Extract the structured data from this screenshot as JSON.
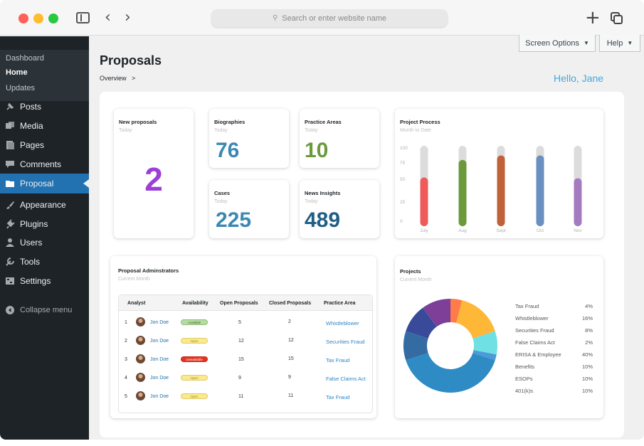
{
  "browser": {
    "url_placeholder": "Search or enter website name"
  },
  "sidebar": {
    "sub_items": [
      "Dashboard",
      "Home",
      "Updates"
    ],
    "items": [
      {
        "label": "Posts",
        "icon": "pin-icon"
      },
      {
        "label": "Media",
        "icon": "media-icon"
      },
      {
        "label": "Pages",
        "icon": "pages-icon"
      },
      {
        "label": "Comments",
        "icon": "comments-icon"
      },
      {
        "label": "Proposal",
        "icon": "folder-icon"
      },
      {
        "label": "Appearance",
        "icon": "brush-icon"
      },
      {
        "label": "Plugins",
        "icon": "plug-icon"
      },
      {
        "label": "Users",
        "icon": "user-icon"
      },
      {
        "label": "Tools",
        "icon": "wrench-icon"
      },
      {
        "label": "Settings",
        "icon": "settings-icon"
      }
    ],
    "collapse_label": "Collapse menu",
    "active_color": "#2271b1"
  },
  "header": {
    "screen_options": "Screen Options",
    "help": "Help",
    "title": "Proposals",
    "breadcrumb": "Overview",
    "breadcrumb_sep": ">",
    "greeting": "Hello, Jane"
  },
  "stats": {
    "new_proposals": {
      "title": "New proposals",
      "sub": "Today",
      "value": "2",
      "color": "#9b3fd6"
    },
    "biographies": {
      "title": "Biographies",
      "sub": "Today",
      "value": "76",
      "color": "#3d88b3"
    },
    "practice_areas": {
      "title": "Practice Areas",
      "sub": "Today",
      "value": "10",
      "color": "#6a9a3a"
    },
    "cases": {
      "title": "Cases",
      "sub": "Today",
      "value": "225",
      "color": "#3d88b3"
    },
    "news_insights": {
      "title": "News Insights",
      "sub": "Today",
      "value": "489",
      "color": "#1f5f86"
    }
  },
  "project_process": {
    "title": "Project Process",
    "sub": "Month to Date"
  },
  "admins": {
    "title": "Proposal Adminstrators",
    "sub": "Current Month",
    "columns": [
      "Analyst",
      "Availability",
      "Open Proposals",
      "Closed Proposals",
      "Practice Area"
    ],
    "rows": [
      {
        "num": "1",
        "name": "Jon Doe",
        "status": "Available",
        "status_class": "available",
        "open": "5",
        "closed": "2",
        "area": "Whistleblower"
      },
      {
        "num": "2",
        "name": "Jon Doe",
        "status": "Open",
        "status_class": "open",
        "open": "12",
        "closed": "12",
        "area": "Securities Fraud"
      },
      {
        "num": "3",
        "name": "Jon Doe",
        "status": "Unavailable",
        "status_class": "unavailable",
        "open": "15",
        "closed": "15",
        "area": "Tax Fraud"
      },
      {
        "num": "4",
        "name": "Jon Doe",
        "status": "Open",
        "status_class": "open",
        "open": "9",
        "closed": "9",
        "area": "False Claims Act"
      },
      {
        "num": "5",
        "name": "Jon Doe",
        "status": "Open",
        "status_class": "open",
        "open": "11",
        "closed": "11",
        "area": "Tax Fraud"
      }
    ]
  },
  "projects": {
    "title": "Projects",
    "sub": "Current Month"
  },
  "chart_data": [
    {
      "type": "bar",
      "title": "Project Process",
      "subtitle": "Month to Date",
      "categories": [
        "July",
        "Aug",
        "Sept",
        "Oct",
        "Nov"
      ],
      "values": [
        64,
        87,
        93,
        93,
        63
      ],
      "colors": [
        "#ef5b5b",
        "#6a9a3a",
        "#c0613a",
        "#6990bf",
        "#a57bbf"
      ],
      "track_color": "#dcdcdc",
      "yticks": [
        100,
        75,
        50,
        25,
        0
      ],
      "ylim": [
        0,
        100
      ],
      "grid": false
    },
    {
      "type": "pie",
      "title": "Projects",
      "subtitle": "Current Month",
      "donut": true,
      "labels": [
        "Tax Fraud",
        "Whistleblower",
        "Securities Fraud",
        "False Claims Act",
        "ERISA & Employee",
        "Benefits",
        "ESOPs",
        "401(k)s"
      ],
      "display_values": [
        "4%",
        "16%",
        "8%",
        "2%",
        "40%",
        "10%",
        "10%",
        "10%"
      ],
      "values": [
        4,
        16,
        8,
        2,
        40,
        10,
        10,
        10
      ],
      "colors": [
        "#ff7b4a",
        "#ffb738",
        "#6fe1e4",
        "#4b9ad9",
        "#2e8bc4",
        "#346ba3",
        "#3a4a9a",
        "#7d3f98"
      ]
    }
  ]
}
